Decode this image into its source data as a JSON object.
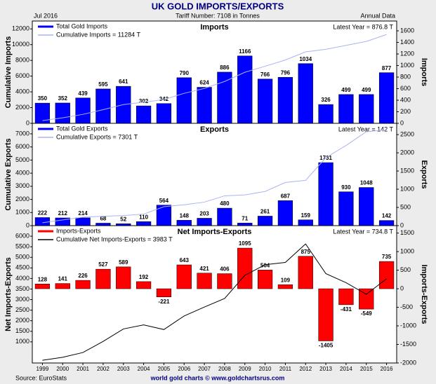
{
  "title": "UK GOLD IMPORTS/EXPORTS",
  "header": {
    "date": "Jul  2016",
    "tariff": "Tariff Number: 7108 in Tonnes",
    "frequency": "Annual Data"
  },
  "footer": {
    "source": "Source: EuroStats",
    "credit": "world gold charts © www.goldchartsrus.com"
  },
  "chart_data": [
    {
      "type": "bar",
      "title": "Imports",
      "ylabel": "Cumulative Imports",
      "y2label": "Imports",
      "annotation": "Latest Year = 876.8 T",
      "ylim": [
        0,
        13000
      ],
      "yticks": [
        0,
        2000,
        4000,
        6000,
        8000,
        10000,
        12000
      ],
      "y2lim": [
        0,
        1770
      ],
      "y2ticks": [
        0,
        200,
        400,
        600,
        800,
        1000,
        1200,
        1400,
        1600
      ],
      "series": [
        {
          "name": "Total Gold Imports",
          "color": "#0000ff",
          "type": "bar",
          "axis": "y2",
          "values": [
            350,
            352,
            439,
            595,
            641,
            302,
            342,
            790,
            624,
            886,
            1166,
            766,
            796,
            1034,
            326,
            499,
            499,
            877
          ]
        },
        {
          "name": "Cumulative Imports = 11284 T",
          "color": "#aab4f0",
          "type": "line",
          "values": [
            350,
            702,
            1141,
            1736,
            2377,
            2679,
            3021,
            3811,
            4435,
            5321,
            6487,
            7253,
            8049,
            9083,
            9409,
            9908,
            10407,
            11284
          ]
        }
      ]
    },
    {
      "type": "bar",
      "title": "Exports",
      "ylabel": "Cumulative Exports",
      "y2label": "Exports",
      "annotation": "Latest Year = 142 T",
      "ylim": [
        0,
        7800
      ],
      "yticks": [
        0,
        1000,
        2000,
        3000,
        4000,
        5000,
        6000,
        7000
      ],
      "y2lim": [
        0,
        2810
      ],
      "y2ticks": [
        0,
        500,
        1000,
        1500,
        2000,
        2500
      ],
      "series": [
        {
          "name": "Total Gold Exports",
          "color": "#0000ff",
          "type": "bar",
          "axis": "y2",
          "values": [
            222,
            212,
            214,
            68,
            52,
            110,
            564,
            148,
            203,
            480,
            71,
            261,
            687,
            159,
            1731,
            930,
            1048,
            142
          ]
        },
        {
          "name": "Cumulative Exports = 7301 T",
          "color": "#aab4f0",
          "type": "line",
          "values": [
            222,
            434,
            648,
            716,
            768,
            878,
            1442,
            1590,
            1793,
            2273,
            2344,
            2605,
            3292,
            3451,
            5182,
            6112,
            7160,
            7301
          ]
        }
      ]
    },
    {
      "type": "bar",
      "title": "Net Imports-Exports",
      "ylabel": "Net Imports-Exports",
      "y2label": "Imports-Exports",
      "annotation": "Latest Year = 734.8 T",
      "categories": [
        "1999",
        "2000",
        "2001",
        "2002",
        "2003",
        "2004",
        "2005",
        "2006",
        "2007",
        "2008",
        "2009",
        "2010",
        "2011",
        "2012",
        "2013",
        "2014",
        "2015",
        "2016"
      ],
      "ylim": [
        0,
        6500
      ],
      "yticks": [
        1000,
        1500,
        2000,
        2500,
        3000,
        3500,
        4000,
        4500,
        5000,
        5500,
        6000
      ],
      "y2lim": [
        -2000,
        1700
      ],
      "y2ticks": [
        -2000,
        -1500,
        -1000,
        -500,
        0,
        500,
        1000,
        1500
      ],
      "series": [
        {
          "name": "Imports-Exports",
          "color": "#ff0000",
          "type": "bar",
          "axis": "y2",
          "values": [
            128,
            141,
            226,
            527,
            589,
            192,
            -221,
            643,
            421,
            406,
            1095,
            504,
            109,
            875,
            -1405,
            -431,
            -549,
            735
          ]
        },
        {
          "name": "Cumulative Net Imports-Exports = 3983 T",
          "color": "#000000",
          "type": "line",
          "values": [
            128,
            269,
            495,
            1022,
            1611,
            1803,
            1582,
            2225,
            2646,
            3052,
            4147,
            4651,
            4760,
            5635,
            4230,
            3799,
            3250,
            3983
          ]
        }
      ]
    }
  ]
}
